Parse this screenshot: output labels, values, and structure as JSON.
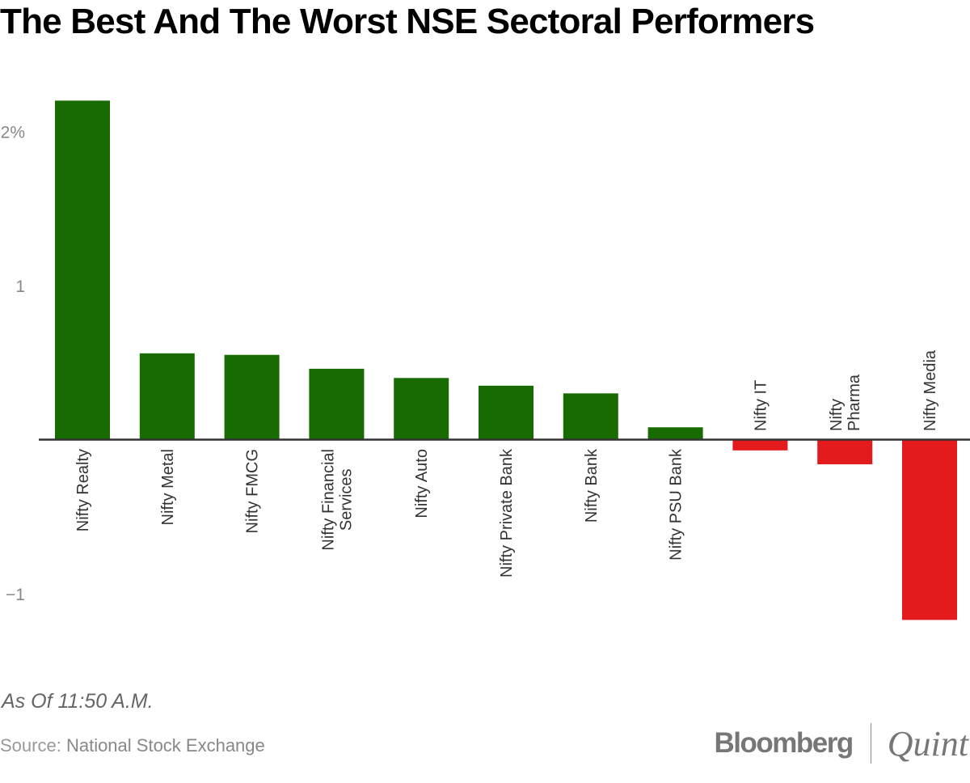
{
  "title": "The Best And The Worst NSE Sectoral Performers",
  "note": "As Of 11:50 A.M.",
  "source": {
    "label": "Source:",
    "value": "National Stock Exchange"
  },
  "logo": {
    "left": "Bloomberg",
    "right": "Quint"
  },
  "colors": {
    "positive": "#176b00",
    "negative": "#e31b1c",
    "axis": "#333333",
    "tick": "#888888"
  },
  "chart_data": {
    "type": "bar",
    "title": "The Best And The Worst NSE Sectoral Performers",
    "xlabel": "",
    "ylabel": "",
    "ylim": [
      -1.3,
      2.3
    ],
    "yticks": [
      {
        "value": 2,
        "label": "2%"
      },
      {
        "value": 1,
        "label": "1"
      },
      {
        "value": -1,
        "label": "−1"
      }
    ],
    "grid": false,
    "legend": "none",
    "categories": [
      "Nifty Realty",
      "Nifty Metal",
      "Nifty FMCG",
      "Nifty Financial Services",
      "Nifty Auto",
      "Nifty Private Bank",
      "Nifty Bank",
      "Nifty PSU Bank",
      "Nifty IT",
      "Nifty Pharma",
      "Nifty Media"
    ],
    "category_lines": [
      [
        "Nifty Realty"
      ],
      [
        "Nifty Metal"
      ],
      [
        "Nifty FMCG"
      ],
      [
        "Nifty Financial",
        "Services"
      ],
      [
        "Nifty Auto"
      ],
      [
        "Nifty Private Bank"
      ],
      [
        "Nifty Bank"
      ],
      [
        "Nifty PSU Bank"
      ],
      [
        "Nifty IT"
      ],
      [
        "Nifty",
        "Pharma"
      ],
      [
        "Nifty Media"
      ]
    ],
    "values": [
      2.2,
      0.56,
      0.55,
      0.46,
      0.4,
      0.35,
      0.3,
      0.08,
      -0.07,
      -0.16,
      -1.17
    ]
  }
}
